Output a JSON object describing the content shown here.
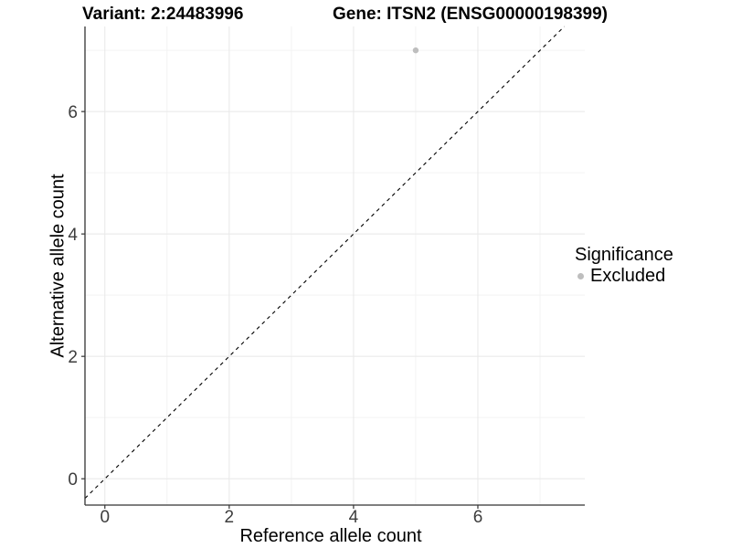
{
  "header": {
    "variant_title": "Variant: 2:24483996",
    "gene_title": "Gene: ITSN2 (ENSG00000198399)"
  },
  "legend": {
    "title": "Significance",
    "items": [
      {
        "label": "Excluded",
        "color": "#bebebe"
      }
    ]
  },
  "chart_data": {
    "type": "scatter",
    "title": "Variant: 2:24483996 | Gene: ITSN2 (ENSG00000198399)",
    "xlabel": "Reference allele count",
    "ylabel": "Alternative allele count",
    "xlim": [
      -0.32,
      7.72
    ],
    "ylim": [
      -0.43,
      7.39
    ],
    "x_ticks": [
      0,
      2,
      4,
      6
    ],
    "y_ticks": [
      0,
      2,
      4,
      6
    ],
    "x_minor": [
      1,
      3,
      5,
      7
    ],
    "y_minor": [
      1,
      3,
      5,
      7
    ],
    "grid": true,
    "legend_position": "right",
    "series": [
      {
        "name": "Excluded",
        "color": "#bebebe",
        "points": [
          {
            "x": 5,
            "y": 7
          }
        ]
      }
    ],
    "reference_line": {
      "kind": "identity y=x",
      "style": "dashed",
      "color": "#000000"
    }
  },
  "style": {
    "background": "#ffffff",
    "grid_major": "#e8e8e8",
    "grid_minor": "#f3f3f3",
    "axis_line": "#333333",
    "tick_text": "#3d3d3d",
    "point_color": "#bebebe",
    "ref_line_color": "#000000"
  }
}
